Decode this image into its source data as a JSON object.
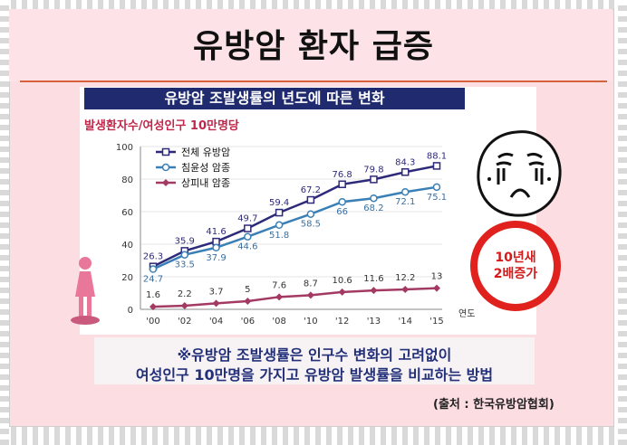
{
  "title": "유방암 환자 급증",
  "subtitle": "유방암 조발생률의 년도에 따른 변화",
  "unit_label": "발생환자수/여성인구 10만명당",
  "stamp": {
    "line1": "10년새",
    "line2": "2배증가"
  },
  "note": {
    "line1": "※유방암 조발생률은 인구수 변화의 고려없이",
    "line2": "여성인구 10만명을 가지고 유방암 발생률을 비교하는 방법"
  },
  "source": "(출처 : 한국유방암협회)",
  "chart_data": {
    "type": "line",
    "title": "유방암 조발생률의 년도에 따른 변화",
    "ylabel": "발생환자수/여성인구 10만명당",
    "xlabel": "연도",
    "x": [
      "'00",
      "'02",
      "'04",
      "'06",
      "'08",
      "'10",
      "'12",
      "'13",
      "'14",
      "'15"
    ],
    "yticks": [
      0,
      20,
      40,
      60,
      80,
      100
    ],
    "ylim": [
      0,
      100
    ],
    "legend_position": "top-left",
    "series": [
      {
        "name": "전체 유방암",
        "color": "#2e2a7a",
        "marker": "square",
        "values": [
          26.3,
          35.9,
          41.6,
          49.7,
          59.4,
          67.2,
          76.8,
          79.8,
          84.3,
          88.1
        ]
      },
      {
        "name": "침윤성 암종",
        "color": "#3a7fb5",
        "marker": "circle",
        "values": [
          24.7,
          33.5,
          37.9,
          44.6,
          51.8,
          58.5,
          66,
          68.2,
          72.1,
          75.1
        ]
      },
      {
        "name": "상피내 암종",
        "color": "#a33a63",
        "marker": "diamond",
        "values": [
          1.6,
          2.2,
          3.7,
          5.0,
          7.6,
          8.7,
          10.6,
          11.6,
          12.2,
          13
        ]
      }
    ]
  }
}
